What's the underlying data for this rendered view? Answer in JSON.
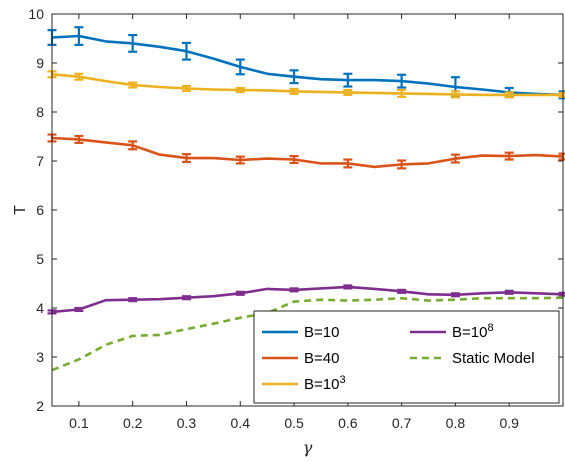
{
  "chart_data": {
    "type": "line",
    "xlabel": "γ",
    "ylabel": "T",
    "xlim": [
      0.05,
      1.0
    ],
    "ylim": [
      2,
      10
    ],
    "xticks": [
      0.1,
      0.2,
      0.3,
      0.4,
      0.5,
      0.6,
      0.7,
      0.8,
      0.9
    ],
    "yticks": [
      2,
      3,
      4,
      5,
      6,
      7,
      8,
      9,
      10
    ],
    "xtick_labels": [
      "0.1",
      "0.2",
      "0.3",
      "0.4",
      "0.5",
      "0.6",
      "0.7",
      "0.8",
      "0.9"
    ],
    "ytick_labels": [
      "2",
      "3",
      "4",
      "5",
      "6",
      "7",
      "8",
      "9",
      "10"
    ],
    "grid": false,
    "legend_position": "bottom-right",
    "legend_columns": 2,
    "x": [
      0.05,
      0.1,
      0.15,
      0.2,
      0.25,
      0.3,
      0.35,
      0.4,
      0.45,
      0.5,
      0.55,
      0.6,
      0.65,
      0.7,
      0.75,
      0.8,
      0.85,
      0.9,
      0.95,
      1.0
    ],
    "series": [
      {
        "name": "B=10",
        "base": "B=10",
        "sup": "",
        "color": "#0072BD",
        "style": "solid",
        "values": [
          9.52,
          9.55,
          9.44,
          9.4,
          9.33,
          9.24,
          9.09,
          8.92,
          8.78,
          8.72,
          8.67,
          8.65,
          8.65,
          8.63,
          8.58,
          8.51,
          8.46,
          8.4,
          8.37,
          8.35
        ],
        "error_x": [
          0.05,
          0.1,
          0.2,
          0.3,
          0.4,
          0.5,
          0.6,
          0.7,
          0.8,
          0.9,
          1.0
        ],
        "error_y": [
          9.52,
          9.55,
          9.4,
          9.24,
          8.92,
          8.72,
          8.65,
          8.63,
          8.51,
          8.4,
          8.35
        ],
        "error_half": [
          0.15,
          0.18,
          0.17,
          0.17,
          0.15,
          0.13,
          0.13,
          0.13,
          0.2,
          0.09,
          0.07
        ]
      },
      {
        "name": "B=40",
        "base": "B=40",
        "sup": "",
        "color": "#D95319",
        "style": "solid",
        "values": [
          7.47,
          7.44,
          7.38,
          7.32,
          7.13,
          7.06,
          7.06,
          7.02,
          7.05,
          7.03,
          6.95,
          6.95,
          6.88,
          6.93,
          6.95,
          7.05,
          7.11,
          7.1,
          7.12,
          7.09
        ],
        "error_x": [
          0.05,
          0.1,
          0.2,
          0.3,
          0.4,
          0.5,
          0.6,
          0.7,
          0.8,
          0.9,
          1.0
        ],
        "error_y": [
          7.47,
          7.44,
          7.32,
          7.06,
          7.02,
          7.03,
          6.95,
          6.93,
          7.05,
          7.1,
          7.09
        ],
        "error_half": [
          0.07,
          0.07,
          0.08,
          0.08,
          0.07,
          0.07,
          0.08,
          0.08,
          0.08,
          0.07,
          0.06
        ]
      },
      {
        "name": "B=10^3",
        "base": "B=10",
        "sup": "3",
        "color": "#EDB120",
        "style": "solid",
        "values": [
          8.77,
          8.72,
          8.63,
          8.55,
          8.51,
          8.48,
          8.46,
          8.45,
          8.44,
          8.42,
          8.41,
          8.4,
          8.39,
          8.38,
          8.37,
          8.36,
          8.35,
          8.35,
          8.35,
          8.35
        ],
        "error_x": [
          0.05,
          0.1,
          0.2,
          0.3,
          0.4,
          0.5,
          0.6,
          0.7,
          0.8,
          0.9,
          1.0
        ],
        "error_y": [
          8.77,
          8.72,
          8.55,
          8.48,
          8.45,
          8.42,
          8.4,
          8.38,
          8.36,
          8.35,
          8.35
        ],
        "error_half": [
          0.06,
          0.06,
          0.05,
          0.05,
          0.04,
          0.05,
          0.05,
          0.07,
          0.06,
          0.05,
          0.04
        ]
      },
      {
        "name": "B=10^8",
        "base": "B=10",
        "sup": "8",
        "color": "#7E2F8E",
        "style": "solid",
        "values": [
          3.92,
          3.97,
          4.16,
          4.17,
          4.18,
          4.21,
          4.24,
          4.3,
          4.39,
          4.37,
          4.4,
          4.43,
          4.39,
          4.34,
          4.28,
          4.27,
          4.3,
          4.32,
          4.3,
          4.28
        ],
        "error_x": [
          0.05,
          0.1,
          0.2,
          0.3,
          0.4,
          0.5,
          0.6,
          0.7,
          0.8,
          0.9,
          1.0
        ],
        "error_y": [
          3.92,
          3.97,
          4.17,
          4.21,
          4.3,
          4.37,
          4.43,
          4.34,
          4.27,
          4.32,
          4.28
        ],
        "error_half": [
          0.03,
          0.03,
          0.03,
          0.03,
          0.03,
          0.03,
          0.03,
          0.03,
          0.03,
          0.03,
          0.03
        ]
      },
      {
        "name": "Static Model",
        "base": "Static Model",
        "sup": "",
        "color": "#77AC30",
        "style": "dashed",
        "values": [
          2.73,
          2.95,
          3.25,
          3.43,
          3.45,
          3.57,
          3.68,
          3.8,
          3.9,
          4.13,
          4.17,
          4.15,
          4.17,
          4.2,
          4.15,
          4.17,
          4.2,
          4.2,
          4.2,
          4.21
        ]
      }
    ]
  }
}
